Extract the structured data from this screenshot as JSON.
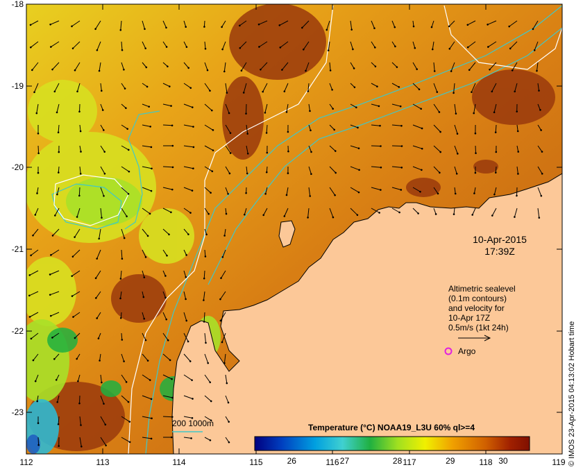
{
  "map": {
    "lon_ticks": [
      "112",
      "113",
      "114",
      "115",
      "116",
      "117",
      "118",
      "119"
    ],
    "lat_ticks": [
      "-18",
      "-19",
      "-20",
      "-21",
      "-22",
      "-23"
    ],
    "date": "10-Apr-2015",
    "time": "17:39Z",
    "altimetry_note": [
      "Altimetric sealevel",
      "(0.1m contours)",
      "and velocity for",
      "10-Apr 17Z",
      "0.5m/s (1kt 24h)"
    ],
    "argo_label": "Argo",
    "depth_contour_label": "200  1000m",
    "colorbar_title": "Temperature (°C) NOAA19_L3U 60% ql>=4",
    "colorbar_ticks": [
      "26",
      "27",
      "28",
      "29",
      "30"
    ],
    "colorbar_range": [
      25.3,
      30.5
    ],
    "credit": "© IMOS 23-Apr-2015 04:13:02 Hobart time",
    "colors": {
      "land": "#fcc898",
      "isobath": "#40c8c8",
      "sealevel_contour": "#ffffff",
      "argo": "#e020e0",
      "colorbar": [
        "#000080",
        "#0040c0",
        "#00a0e0",
        "#40d0d0",
        "#20b040",
        "#a0e020",
        "#f0f000",
        "#f0a000",
        "#d06000",
        "#a02000",
        "#801000"
      ]
    }
  }
}
